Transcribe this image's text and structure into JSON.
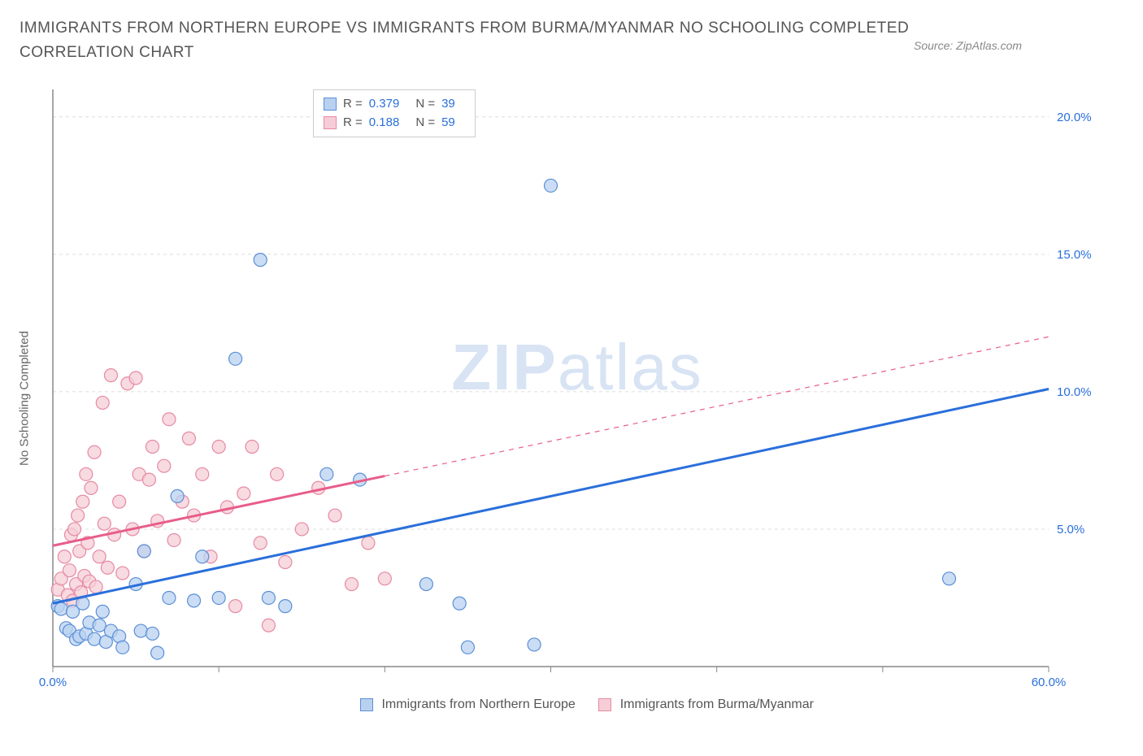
{
  "title": "IMMIGRANTS FROM NORTHERN EUROPE VS IMMIGRANTS FROM BURMA/MYANMAR NO SCHOOLING COMPLETED CORRELATION CHART",
  "source": "Source: ZipAtlas.com",
  "y_axis_label": "No Schooling Completed",
  "watermark_bold": "ZIP",
  "watermark_rest": "atlas",
  "chart": {
    "type": "scatter",
    "background_color": "#ffffff",
    "grid_color": "#dddddd",
    "axis_color": "#888888",
    "xlim": [
      0,
      60
    ],
    "ylim": [
      0,
      21
    ],
    "x_ticks": [
      0,
      10,
      20,
      30,
      40,
      50,
      60
    ],
    "x_tick_labels": [
      "0.0%",
      "",
      "",
      "",
      "",
      "",
      "60.0%"
    ],
    "y_ticks": [
      5,
      10,
      15,
      20
    ],
    "y_tick_labels": [
      "5.0%",
      "10.0%",
      "15.0%",
      "20.0%"
    ],
    "marker_radius": 8,
    "marker_stroke_width": 1.2,
    "series": [
      {
        "name": "Immigrants from Northern Europe",
        "color_fill": "#b9d1f0",
        "color_stroke": "#5a8fd6",
        "color_line": "#2a6fdb",
        "R": "0.379",
        "N": "39",
        "trend": {
          "x1": 0,
          "y1": 2.3,
          "x2": 60,
          "y2": 10.1,
          "dash_from_x": null
        },
        "points": [
          [
            0.3,
            2.2
          ],
          [
            0.5,
            2.1
          ],
          [
            0.8,
            1.4
          ],
          [
            1.0,
            1.3
          ],
          [
            1.2,
            2.0
          ],
          [
            1.4,
            1.0
          ],
          [
            1.6,
            1.1
          ],
          [
            1.8,
            2.3
          ],
          [
            2.0,
            1.2
          ],
          [
            2.2,
            1.6
          ],
          [
            2.5,
            1.0
          ],
          [
            2.8,
            1.5
          ],
          [
            3.0,
            2.0
          ],
          [
            3.2,
            0.9
          ],
          [
            3.5,
            1.3
          ],
          [
            4.0,
            1.1
          ],
          [
            4.2,
            0.7
          ],
          [
            5.0,
            3.0
          ],
          [
            5.3,
            1.3
          ],
          [
            5.5,
            4.2
          ],
          [
            6.0,
            1.2
          ],
          [
            6.3,
            0.5
          ],
          [
            7.0,
            2.5
          ],
          [
            7.5,
            6.2
          ],
          [
            8.5,
            2.4
          ],
          [
            9.0,
            4.0
          ],
          [
            10.0,
            2.5
          ],
          [
            11.0,
            11.2
          ],
          [
            12.5,
            14.8
          ],
          [
            13.0,
            2.5
          ],
          [
            14.0,
            2.2
          ],
          [
            16.5,
            7.0
          ],
          [
            18.5,
            6.8
          ],
          [
            22.5,
            3.0
          ],
          [
            24.5,
            2.3
          ],
          [
            25.0,
            0.7
          ],
          [
            29.0,
            0.8
          ],
          [
            30.0,
            17.5
          ],
          [
            54.0,
            3.2
          ]
        ]
      },
      {
        "name": "Immigrants from Burma/Myanmar",
        "color_fill": "#f6cdd7",
        "color_stroke": "#e68aa3",
        "color_line": "#e85d8a",
        "R": "0.188",
        "N": "59",
        "trend": {
          "x1": 0,
          "y1": 4.4,
          "x2": 60,
          "y2": 12.0,
          "dash_from_x": 20
        },
        "points": [
          [
            0.3,
            2.8
          ],
          [
            0.5,
            3.2
          ],
          [
            0.7,
            4.0
          ],
          [
            0.9,
            2.6
          ],
          [
            1.0,
            3.5
          ],
          [
            1.1,
            4.8
          ],
          [
            1.2,
            2.4
          ],
          [
            1.3,
            5.0
          ],
          [
            1.4,
            3.0
          ],
          [
            1.5,
            5.5
          ],
          [
            1.6,
            4.2
          ],
          [
            1.7,
            2.7
          ],
          [
            1.8,
            6.0
          ],
          [
            1.9,
            3.3
          ],
          [
            2.0,
            7.0
          ],
          [
            2.1,
            4.5
          ],
          [
            2.2,
            3.1
          ],
          [
            2.3,
            6.5
          ],
          [
            2.5,
            7.8
          ],
          [
            2.6,
            2.9
          ],
          [
            2.8,
            4.0
          ],
          [
            3.0,
            9.6
          ],
          [
            3.1,
            5.2
          ],
          [
            3.3,
            3.6
          ],
          [
            3.5,
            10.6
          ],
          [
            3.7,
            4.8
          ],
          [
            4.0,
            6.0
          ],
          [
            4.2,
            3.4
          ],
          [
            4.5,
            10.3
          ],
          [
            4.8,
            5.0
          ],
          [
            5.0,
            10.5
          ],
          [
            5.2,
            7.0
          ],
          [
            5.5,
            4.2
          ],
          [
            5.8,
            6.8
          ],
          [
            6.0,
            8.0
          ],
          [
            6.3,
            5.3
          ],
          [
            6.7,
            7.3
          ],
          [
            7.0,
            9.0
          ],
          [
            7.3,
            4.6
          ],
          [
            7.8,
            6.0
          ],
          [
            8.2,
            8.3
          ],
          [
            8.5,
            5.5
          ],
          [
            9.0,
            7.0
          ],
          [
            9.5,
            4.0
          ],
          [
            10.0,
            8.0
          ],
          [
            10.5,
            5.8
          ],
          [
            11.0,
            2.2
          ],
          [
            11.5,
            6.3
          ],
          [
            12.0,
            8.0
          ],
          [
            12.5,
            4.5
          ],
          [
            13.0,
            1.5
          ],
          [
            13.5,
            7.0
          ],
          [
            14.0,
            3.8
          ],
          [
            15.0,
            5.0
          ],
          [
            16.0,
            6.5
          ],
          [
            17.0,
            5.5
          ],
          [
            18.0,
            3.0
          ],
          [
            19.0,
            4.5
          ],
          [
            20.0,
            3.2
          ]
        ]
      }
    ]
  },
  "legend": {
    "series1_label": "Immigrants from Northern Europe",
    "series2_label": "Immigrants from Burma/Myanmar"
  },
  "stats_labels": {
    "R": "R =",
    "N": "N ="
  }
}
